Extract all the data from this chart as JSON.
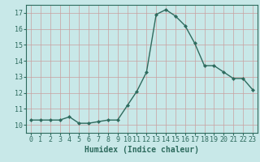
{
  "title": "",
  "xlabel": "Humidex (Indice chaleur)",
  "x": [
    0,
    1,
    2,
    3,
    4,
    5,
    6,
    7,
    8,
    9,
    10,
    11,
    12,
    13,
    14,
    15,
    16,
    17,
    18,
    19,
    20,
    21,
    22,
    23
  ],
  "y": [
    10.3,
    10.3,
    10.3,
    10.3,
    10.5,
    10.1,
    10.1,
    10.2,
    10.3,
    10.3,
    11.2,
    12.1,
    13.3,
    16.9,
    17.2,
    16.8,
    16.2,
    15.1,
    13.7,
    13.7,
    13.3,
    12.9,
    12.9,
    12.2
  ],
  "line_color": "#2e6b5e",
  "bg_color": "#c8e8e8",
  "grid_color": "#c8a0a0",
  "ylim": [
    9.5,
    17.5
  ],
  "xlim": [
    -0.5,
    23.5
  ],
  "yticks": [
    10,
    11,
    12,
    13,
    14,
    15,
    16,
    17
  ],
  "xticks": [
    0,
    1,
    2,
    3,
    4,
    5,
    6,
    7,
    8,
    9,
    10,
    11,
    12,
    13,
    14,
    15,
    16,
    17,
    18,
    19,
    20,
    21,
    22,
    23
  ],
  "marker": "D",
  "marker_size": 2.0,
  "line_width": 1.0,
  "xlabel_fontsize": 7,
  "tick_fontsize": 6,
  "spine_color": "#2e6b5e"
}
